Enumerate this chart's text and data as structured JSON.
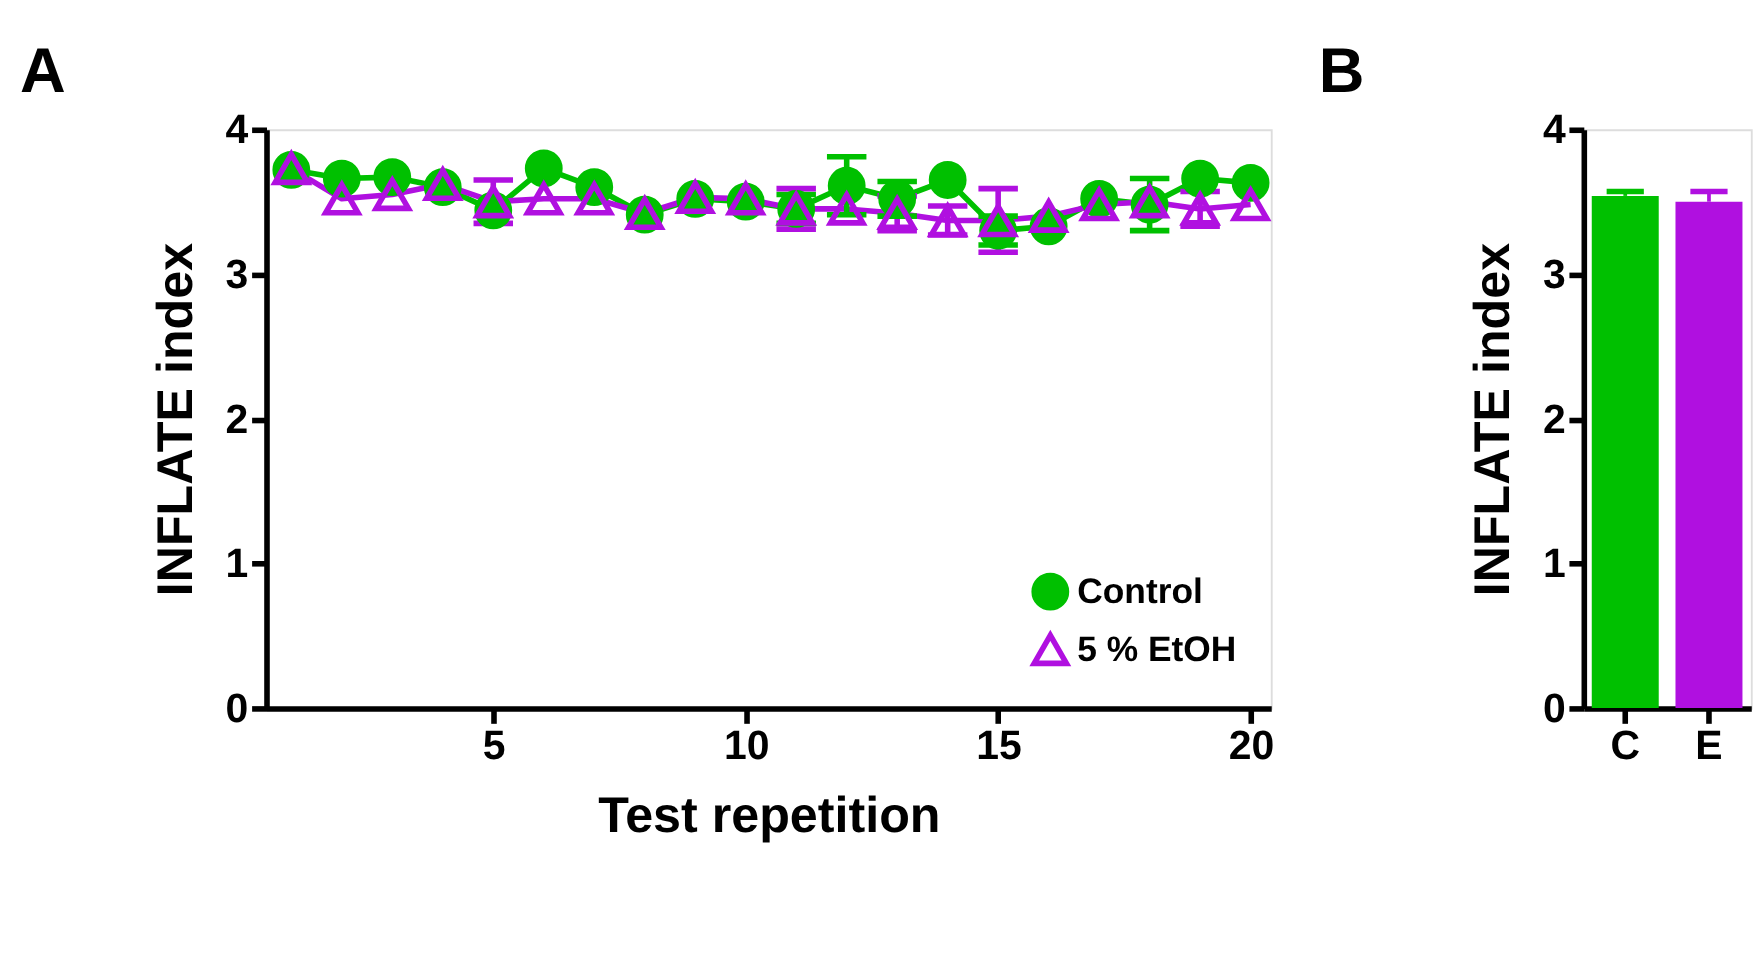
{
  "chart_data": [
    {
      "type": "line",
      "title": "A",
      "xlabel": "Test repetition",
      "ylabel": "INFLATE index",
      "x": [
        1,
        2,
        3,
        4,
        5,
        6,
        7,
        8,
        9,
        10,
        11,
        12,
        13,
        14,
        15,
        16,
        17,
        18,
        19,
        20
      ],
      "xlim": [
        0.5,
        20.4
      ],
      "xticks": [
        5,
        10,
        15,
        20
      ],
      "ylim": [
        0,
        4
      ],
      "yticks": [
        0,
        1,
        2,
        3,
        4
      ],
      "grid": false,
      "legend": "bottom right",
      "line_style": "solid",
      "series": [
        {
          "name": "Control",
          "color": "#00c000",
          "marker": "circle",
          "values": [
            3.72,
            3.66,
            3.67,
            3.6,
            3.44,
            3.73,
            3.6,
            3.41,
            3.52,
            3.5,
            3.45,
            3.61,
            3.52,
            3.65,
            3.3,
            3.33,
            3.52,
            3.48,
            3.66,
            3.63
          ],
          "errors": [
            null,
            null,
            null,
            null,
            null,
            null,
            null,
            null,
            null,
            null,
            0.1,
            0.2,
            0.12,
            null,
            0.1,
            null,
            null,
            0.18,
            null,
            null
          ]
        },
        {
          "name": "5 % EtOH",
          "color": "#b010e0",
          "marker": "triangle",
          "values": [
            3.73,
            3.52,
            3.55,
            3.62,
            3.5,
            3.52,
            3.52,
            3.42,
            3.53,
            3.52,
            3.45,
            3.45,
            3.42,
            3.37,
            3.37,
            3.4,
            3.48,
            3.5,
            3.45,
            3.48
          ],
          "errors": [
            null,
            null,
            null,
            null,
            0.15,
            null,
            null,
            null,
            null,
            null,
            0.14,
            null,
            0.12,
            0.1,
            0.22,
            null,
            null,
            null,
            0.12,
            null
          ]
        }
      ]
    },
    {
      "type": "bar",
      "title": "B",
      "ylabel": "INFLATE index",
      "categories": [
        "C",
        "E"
      ],
      "values": [
        3.54,
        3.5
      ],
      "errors": [
        0.03,
        0.07
      ],
      "colors": [
        "#00c000",
        "#b010e0"
      ],
      "ylim": [
        0,
        4
      ],
      "yticks": [
        0,
        1,
        2,
        3,
        4
      ],
      "grid": false,
      "legend": false
    }
  ]
}
